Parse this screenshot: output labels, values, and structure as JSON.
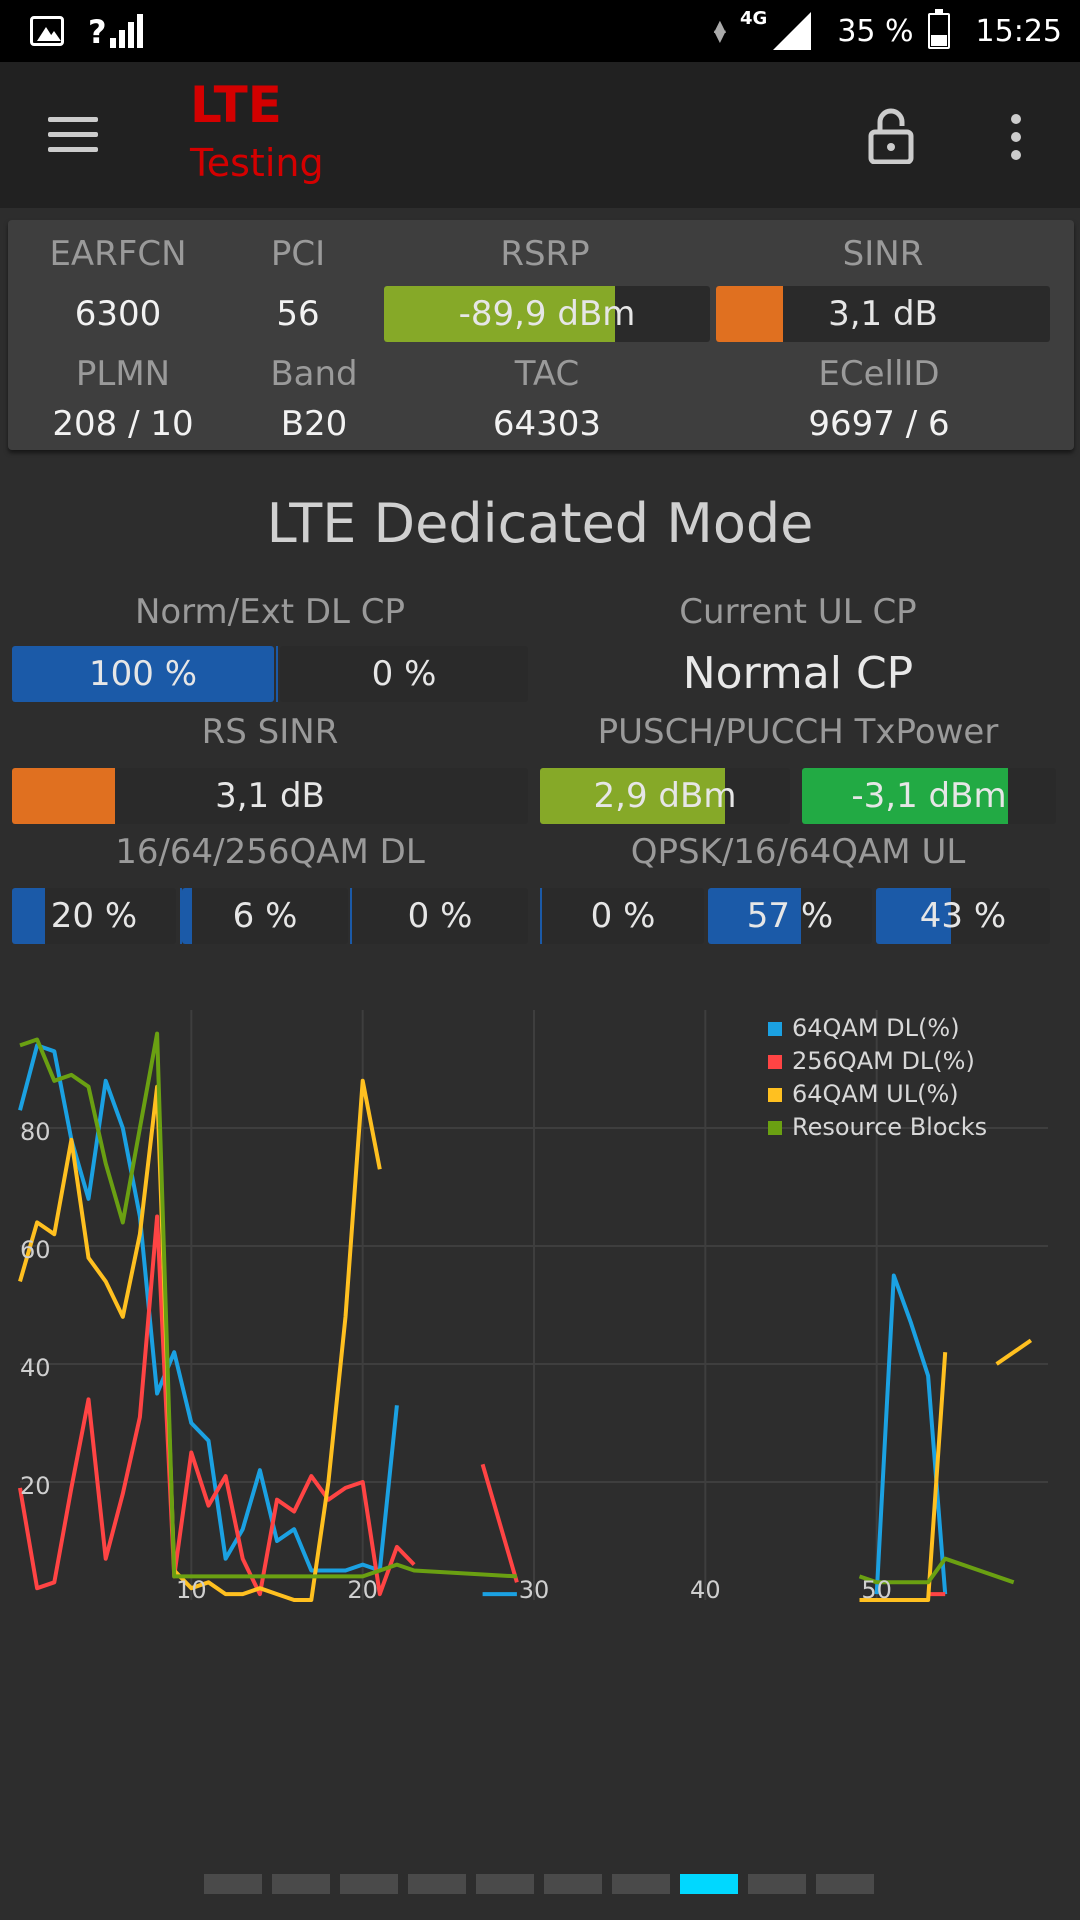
{
  "status_bar": {
    "network": "4G",
    "battery": "35 %",
    "time": "15:25",
    "signal_prefix": "?"
  },
  "app": {
    "title_line1": "LTE",
    "title_line2": "Testing"
  },
  "cell": {
    "labels": {
      "earfcn": "EARFCN",
      "pci": "PCI",
      "rsrp": "RSRP",
      "sinr": "SINR",
      "plmn": "PLMN",
      "band": "Band",
      "tac": "TAC",
      "ecellid": "ECellID"
    },
    "earfcn": "6300",
    "pci": "56",
    "rsrp": {
      "text": "-89,9 dBm",
      "level": 0.71,
      "color": "#86a928"
    },
    "sinr": {
      "text": "3,1 dB",
      "level": 0.2,
      "color": "#e07020"
    },
    "plmn": "208 / 10",
    "band": "B20",
    "tac": "64303",
    "ecellid": "9697 / 6"
  },
  "dedicated": {
    "title": "LTE Dedicated Mode",
    "labels": {
      "dl_cp": "Norm/Ext DL CP",
      "ul_cp": "Current UL CP",
      "rs_sinr": "RS SINR",
      "tx_power": "PUSCH/PUCCH TxPower",
      "qam_dl": "16/64/256QAM DL",
      "qam_ul": "QPSK/16/64QAM UL"
    },
    "dl_cp_normal": {
      "text": "100 %",
      "level": 1.0
    },
    "dl_cp_extended": {
      "text": "0 %",
      "level": 0.0
    },
    "ul_cp": "Normal CP",
    "rs_sinr": {
      "text": "3,1 dB",
      "level": 0.2
    },
    "pusch": {
      "text": "2,9 dBm",
      "level": 0.74
    },
    "pucch": {
      "text": "-3,1 dBm",
      "level": 0.81
    },
    "qam_dl_16": {
      "text": "20 %",
      "level": 0.2
    },
    "qam_dl_64": {
      "text": "6 %",
      "level": 0.06
    },
    "qam_dl_256": {
      "text": "0 %",
      "level": 0.0
    },
    "qam_ul_qpsk": {
      "text": "0 %",
      "level": 0.0
    },
    "qam_ul_16": {
      "text": "57 %",
      "level": 0.57
    },
    "qam_ul_64": {
      "text": "43 %",
      "level": 0.43
    },
    "colors": {
      "blue": "#1b5aa8",
      "orange": "#e07020",
      "lime": "#86a928",
      "green": "#22aa44"
    }
  },
  "chart_data": {
    "type": "line",
    "xlim": [
      0,
      60
    ],
    "ylim": [
      0,
      100
    ],
    "x_ticks": [
      "10",
      "20",
      "30",
      "40",
      "50"
    ],
    "y_ticks": [
      "20",
      "40",
      "60",
      "80"
    ],
    "legend_position": "top-right",
    "series": [
      {
        "name": "64QAM DL(%)",
        "color": "#1ba1e2",
        "segments": [
          [
            [
              0,
              83
            ],
            [
              1,
              94
            ],
            [
              2,
              93
            ],
            [
              3,
              78
            ],
            [
              4,
              68
            ],
            [
              5,
              88
            ],
            [
              6,
              80
            ],
            [
              7,
              65
            ],
            [
              8,
              35
            ],
            [
              9,
              42
            ],
            [
              10,
              30
            ],
            [
              11,
              27
            ],
            [
              12,
              7
            ],
            [
              13,
              12
            ],
            [
              14,
              22
            ],
            [
              15,
              10
            ],
            [
              16,
              12
            ],
            [
              17,
              5
            ],
            [
              18,
              5
            ],
            [
              19,
              5
            ],
            [
              20,
              6
            ],
            [
              21,
              5
            ],
            [
              22,
              33
            ]
          ],
          [
            [
              27,
              1
            ],
            [
              29,
              1
            ]
          ],
          [
            [
              50,
              1
            ],
            [
              51,
              55
            ],
            [
              52,
              47
            ],
            [
              53,
              38
            ],
            [
              54,
              1
            ]
          ]
        ]
      },
      {
        "name": "256QAM DL(%)",
        "color": "#ff4444",
        "segments": [
          [
            [
              0,
              19
            ],
            [
              1,
              2
            ],
            [
              2,
              3
            ],
            [
              3,
              19
            ],
            [
              4,
              34
            ],
            [
              5,
              7
            ],
            [
              6,
              18
            ],
            [
              7,
              31
            ],
            [
              8,
              65
            ],
            [
              9,
              4
            ],
            [
              10,
              25
            ],
            [
              11,
              16
            ],
            [
              12,
              21
            ],
            [
              13,
              7
            ],
            [
              14,
              1
            ],
            [
              15,
              17
            ],
            [
              16,
              15
            ],
            [
              17,
              21
            ],
            [
              18,
              17
            ],
            [
              19,
              19
            ],
            [
              20,
              20
            ],
            [
              21,
              1
            ],
            [
              22,
              9
            ],
            [
              23,
              6
            ]
          ],
          [
            [
              27,
              23
            ],
            [
              29,
              3
            ]
          ],
          [
            [
              53,
              1
            ],
            [
              54,
              1
            ]
          ]
        ]
      },
      {
        "name": "64QAM UL(%)",
        "color": "#ffc020",
        "segments": [
          [
            [
              0,
              54
            ],
            [
              1,
              64
            ],
            [
              2,
              62
            ],
            [
              3,
              78
            ],
            [
              4,
              58
            ],
            [
              5,
              54
            ],
            [
              6,
              48
            ],
            [
              7,
              62
            ],
            [
              8,
              87
            ],
            [
              9,
              5
            ],
            [
              10,
              2
            ],
            [
              11,
              3
            ],
            [
              12,
              1
            ],
            [
              13,
              1
            ],
            [
              14,
              2
            ],
            [
              15,
              1
            ],
            [
              16,
              0
            ],
            [
              17,
              0
            ],
            [
              18,
              20
            ],
            [
              19,
              48
            ],
            [
              20,
              88
            ],
            [
              21,
              73
            ]
          ],
          [
            [
              49,
              0
            ],
            [
              53,
              0
            ],
            [
              54,
              42
            ]
          ],
          [
            [
              57,
              40
            ],
            [
              59,
              44
            ]
          ]
        ]
      },
      {
        "name": "Resource Blocks",
        "color": "#6aa012",
        "segments": [
          [
            [
              0,
              94
            ],
            [
              1,
              95
            ],
            [
              2,
              88
            ],
            [
              3,
              89
            ],
            [
              4,
              87
            ],
            [
              5,
              74
            ],
            [
              6,
              64
            ],
            [
              7,
              80
            ],
            [
              8,
              96
            ],
            [
              9,
              4
            ],
            [
              10,
              4
            ],
            [
              15,
              4
            ],
            [
              20,
              4
            ],
            [
              21,
              5
            ],
            [
              22,
              6
            ],
            [
              23,
              5
            ],
            [
              29,
              4
            ]
          ],
          [
            [
              49,
              4
            ],
            [
              50,
              3
            ],
            [
              53,
              3
            ],
            [
              54,
              7
            ],
            [
              56,
              5
            ],
            [
              58,
              3
            ]
          ]
        ]
      }
    ]
  },
  "pager": {
    "count": 10,
    "active": 7
  }
}
